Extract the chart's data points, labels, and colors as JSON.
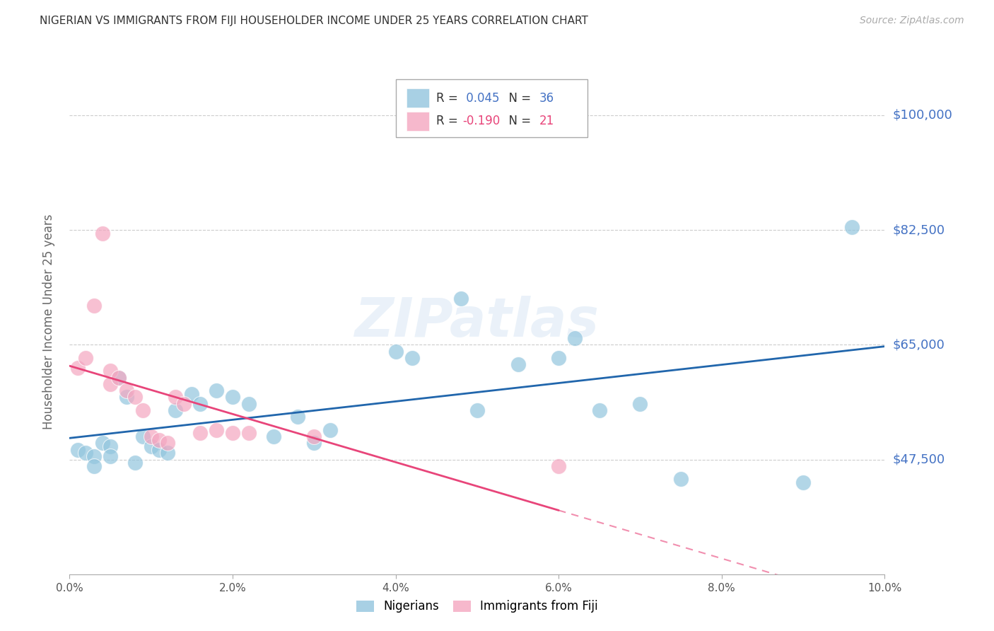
{
  "title": "NIGERIAN VS IMMIGRANTS FROM FIJI HOUSEHOLDER INCOME UNDER 25 YEARS CORRELATION CHART",
  "source": "Source: ZipAtlas.com",
  "ylabel_label": "Householder Income Under 25 years",
  "xlim": [
    0.0,
    0.1
  ],
  "ylim": [
    30000,
    107000
  ],
  "yticks": [
    47500,
    65000,
    82500,
    100000
  ],
  "xticks": [
    0.0,
    0.02,
    0.04,
    0.06,
    0.08,
    0.1
  ],
  "xtick_labels": [
    "0.0%",
    "2.0%",
    "4.0%",
    "6.0%",
    "8.0%",
    "10.0%"
  ],
  "ytick_labels": [
    "$47,500",
    "$65,000",
    "$82,500",
    "$100,000"
  ],
  "blue_color": "#92c5de",
  "pink_color": "#f4a6c0",
  "blue_line_color": "#2166ac",
  "pink_line_color": "#e8457a",
  "watermark": "ZIPatlas",
  "nigerians_x": [
    0.001,
    0.002,
    0.003,
    0.003,
    0.004,
    0.005,
    0.005,
    0.006,
    0.007,
    0.008,
    0.009,
    0.01,
    0.011,
    0.012,
    0.013,
    0.015,
    0.016,
    0.018,
    0.02,
    0.022,
    0.025,
    0.028,
    0.03,
    0.032,
    0.04,
    0.042,
    0.048,
    0.05,
    0.055,
    0.06,
    0.062,
    0.065,
    0.07,
    0.075,
    0.09,
    0.096
  ],
  "nigerians_y": [
    49000,
    48500,
    48000,
    46500,
    50000,
    49500,
    48000,
    60000,
    57000,
    47000,
    51000,
    49500,
    49000,
    48500,
    55000,
    57500,
    56000,
    58000,
    57000,
    56000,
    51000,
    54000,
    50000,
    52000,
    64000,
    63000,
    72000,
    55000,
    62000,
    63000,
    66000,
    55000,
    56000,
    44500,
    44000,
    83000
  ],
  "fiji_x": [
    0.001,
    0.002,
    0.003,
    0.004,
    0.005,
    0.005,
    0.006,
    0.007,
    0.008,
    0.009,
    0.01,
    0.011,
    0.012,
    0.013,
    0.014,
    0.016,
    0.018,
    0.02,
    0.022,
    0.03,
    0.06
  ],
  "fiji_y": [
    61500,
    63000,
    71000,
    82000,
    61000,
    59000,
    60000,
    58000,
    57000,
    55000,
    51000,
    50500,
    50000,
    57000,
    56000,
    51500,
    52000,
    51500,
    51500,
    51000,
    46500
  ],
  "fig_bg": "#ffffff",
  "plot_bg": "#ffffff",
  "grid_color": "#cccccc",
  "title_color": "#333333",
  "axis_label_color": "#666666",
  "ytick_color": "#4472c4",
  "blue_legend_color": "#4472c4",
  "pink_legend_color": "#e8457a"
}
